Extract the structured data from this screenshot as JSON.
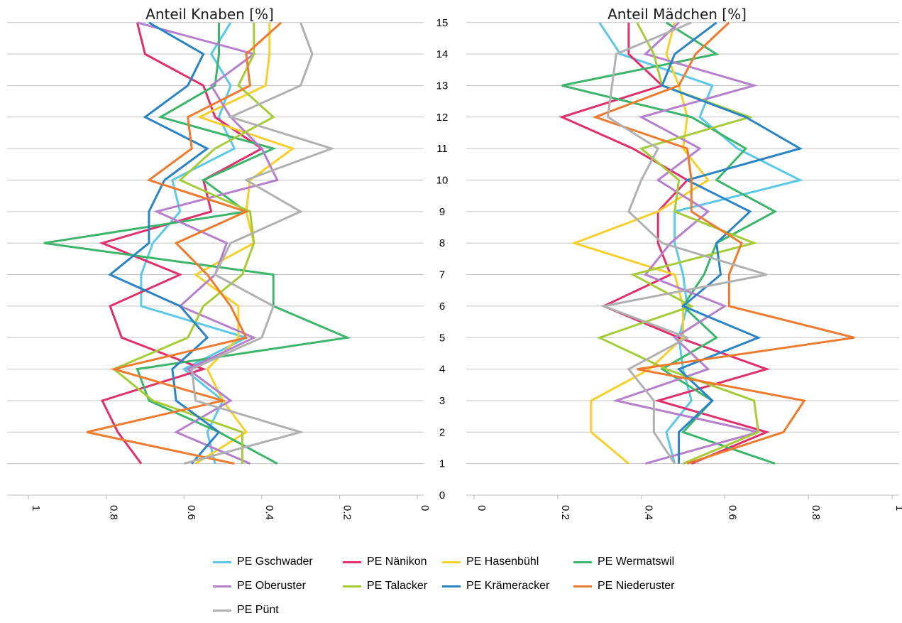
{
  "chart_data": {
    "type": "line",
    "y_ticks": [
      "0",
      "1",
      "2",
      "3",
      "4",
      "5",
      "6",
      "7",
      "8",
      "9",
      "10",
      "11",
      "12",
      "13",
      "14",
      "15"
    ],
    "ylim": [
      0,
      15
    ],
    "grid": true,
    "legend_position": "bottom",
    "panels": [
      {
        "title": "Anteil Knaben [%]",
        "xlim": [
          1,
          0
        ],
        "x_ticks": [
          "1",
          "0.8",
          "0.6",
          "0.4",
          "0.2",
          "0"
        ],
        "x_tick_values": [
          1,
          0.8,
          0.6,
          0.4,
          0.2,
          0
        ]
      },
      {
        "title": "Anteil Mädchen [%]",
        "xlim": [
          0,
          1
        ],
        "x_ticks": [
          "0",
          "0.2",
          "0.4",
          "0.6",
          "0.8",
          "1"
        ],
        "x_tick_values": [
          0,
          0.2,
          0.4,
          0.6,
          0.8,
          1
        ]
      }
    ],
    "series": [
      {
        "name": "PE Gschwader",
        "color": "#5bc8e8",
        "knaben": [
          0.52,
          0.54,
          0.5,
          0.6,
          0.44,
          0.71,
          0.71,
          0.68,
          0.61,
          0.63,
          0.47,
          0.51,
          0.48,
          0.53,
          0.48
        ],
        "maedchen": [
          0.48,
          0.46,
          0.52,
          0.5,
          0.49,
          0.51,
          0.5,
          0.48,
          0.48,
          0.78,
          0.63,
          0.54,
          0.57,
          0.35,
          0.3
        ]
      },
      {
        "name": "PE Nänikon",
        "color": "#e0306b",
        "knaben": [
          0.71,
          0.77,
          0.81,
          0.55,
          0.76,
          0.79,
          0.61,
          0.81,
          0.53,
          0.55,
          0.4,
          0.52,
          0.55,
          0.7,
          0.72
        ],
        "maedchen": [
          0.52,
          0.7,
          0.44,
          0.7,
          0.49,
          0.31,
          0.47,
          0.44,
          0.44,
          0.51,
          0.38,
          0.21,
          0.45,
          0.37,
          0.37
        ]
      },
      {
        "name": "PE Hasenbühl",
        "color": "#f7cf2b",
        "knaben": [
          0.57,
          0.44,
          0.5,
          0.54,
          0.46,
          0.46,
          0.57,
          0.42,
          0.44,
          0.43,
          0.32,
          0.56,
          0.39,
          0.38,
          0.38
        ],
        "maedchen": [
          0.37,
          0.28,
          0.28,
          0.42,
          0.5,
          0.5,
          0.48,
          0.24,
          0.44,
          0.56,
          0.5,
          0.51,
          0.49,
          0.46,
          0.48
        ]
      },
      {
        "name": "PE Wermatswil",
        "color": "#3bb56a",
        "knaben": [
          0.36,
          0.51,
          0.69,
          0.72,
          0.18,
          0.37,
          0.37,
          0.96,
          0.44,
          0.55,
          0.37,
          0.66,
          0.52,
          0.51,
          0.51
        ],
        "maedchen": [
          0.72,
          0.5,
          0.57,
          0.45,
          0.58,
          0.5,
          0.55,
          0.58,
          0.72,
          0.58,
          0.65,
          0.52,
          0.21,
          0.58,
          0.46
        ]
      },
      {
        "name": "PE Oberuster",
        "color": "#b57fcc",
        "knaben": [
          0.43,
          0.62,
          0.48,
          0.59,
          0.42,
          0.61,
          0.52,
          0.49,
          0.67,
          0.36,
          0.4,
          0.48,
          0.53,
          0.42,
          0.72
        ],
        "maedchen": [
          0.41,
          0.68,
          0.34,
          0.56,
          0.48,
          0.6,
          0.41,
          0.47,
          0.56,
          0.44,
          0.54,
          0.4,
          0.67,
          0.41,
          0.49
        ]
      },
      {
        "name": "PE Talacker",
        "color": "#a5cc37",
        "knaben": [
          0.45,
          0.45,
          0.68,
          0.78,
          0.59,
          0.55,
          0.45,
          0.42,
          0.43,
          0.61,
          0.52,
          0.37,
          0.46,
          0.42,
          0.42
        ],
        "maedchen": [
          0.5,
          0.68,
          0.67,
          0.46,
          0.3,
          0.52,
          0.38,
          0.67,
          0.48,
          0.49,
          0.4,
          0.66,
          0.45,
          0.43,
          0.39
        ]
      },
      {
        "name": "PE Krämeracker",
        "color": "#2a84c3",
        "knaben": [
          0.58,
          0.51,
          0.62,
          0.63,
          0.54,
          0.61,
          0.79,
          0.69,
          0.69,
          0.65,
          0.54,
          0.7,
          0.59,
          0.55,
          0.69
        ],
        "maedchen": [
          0.49,
          0.49,
          0.57,
          0.49,
          0.68,
          0.5,
          0.59,
          0.58,
          0.66,
          0.51,
          0.78,
          0.65,
          0.45,
          0.48,
          0.58
        ]
      },
      {
        "name": "PE Niederuster",
        "color": "#ee7a2e",
        "knaben": [
          0.47,
          0.85,
          0.5,
          0.78,
          0.44,
          0.48,
          0.54,
          0.62,
          0.44,
          0.69,
          0.58,
          0.59,
          0.43,
          0.44,
          0.35
        ],
        "maedchen": [
          0.51,
          0.74,
          0.79,
          0.39,
          0.91,
          0.61,
          0.61,
          0.64,
          0.52,
          0.52,
          0.51,
          0.29,
          0.49,
          0.53,
          0.61
        ]
      },
      {
        "name": "PE Pünt",
        "color": "#b0b0b0",
        "knaben": [
          0.6,
          0.3,
          0.57,
          0.58,
          0.4,
          0.37,
          0.52,
          0.48,
          0.3,
          0.44,
          0.22,
          0.48,
          0.3,
          0.27,
          0.3
        ],
        "maedchen": [
          0.48,
          0.43,
          0.43,
          0.37,
          0.51,
          0.31,
          0.7,
          0.45,
          0.37,
          0.4,
          0.44,
          0.32,
          0.33,
          0.34,
          0.52
        ]
      }
    ]
  }
}
